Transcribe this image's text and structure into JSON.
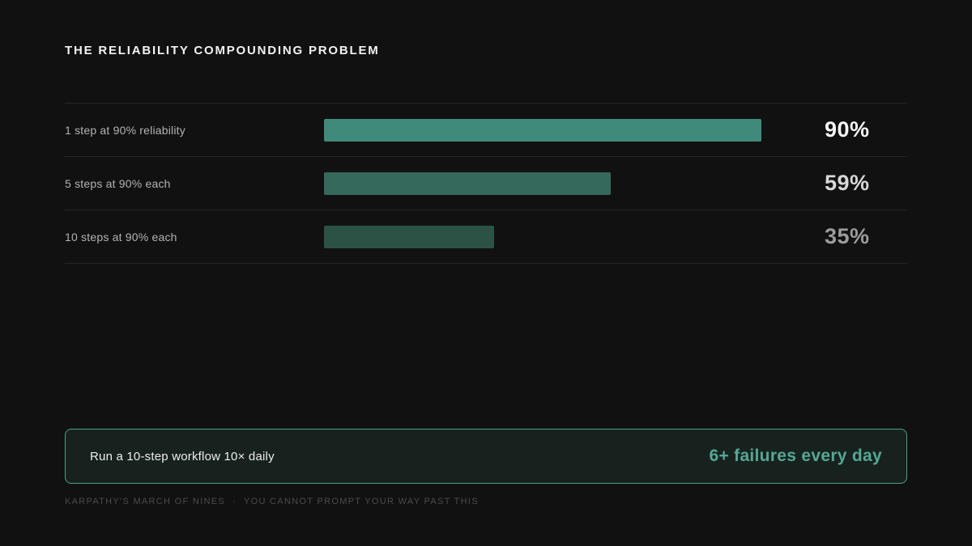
{
  "page": {
    "title": "THE RELIABILITY COMPOUNDING PROBLEM"
  },
  "chart_data": {
    "type": "bar",
    "orientation": "horizontal",
    "title": "THE RELIABILITY COMPOUNDING PROBLEM",
    "categories": [
      "1 step at 90% reliability",
      "5 steps at 90% each",
      "10 steps at 90% each"
    ],
    "values": [
      90,
      59,
      35
    ],
    "value_labels": [
      "90%",
      "59%",
      "35%"
    ],
    "xlim": [
      0,
      100
    ],
    "grid": false,
    "legend": false,
    "bar_colors": [
      "#3f8a7a",
      "#34695c",
      "#2c5246"
    ],
    "value_label_colors": [
      "#f7f7f7",
      "#d8d8d8",
      "#9c9c9c"
    ]
  },
  "callout": {
    "text": "Run a 10-step workflow 10× daily",
    "value": "6+ failures every day"
  },
  "footer": {
    "left": "KARPATHY'S MARCH OF NINES",
    "separator": "·",
    "right": "YOU CANNOT PROMPT YOUR WAY PAST THIS"
  },
  "colors": {
    "background": "#111111",
    "title_text": "#f2f2f2",
    "row_label": "#b3b3b3",
    "divider": "#272727",
    "callout_border": "#4f9f8d",
    "callout_background": "#17221e",
    "callout_text": "#ededed",
    "callout_value": "#55a795",
    "footer_text": "#4b4b4b"
  }
}
